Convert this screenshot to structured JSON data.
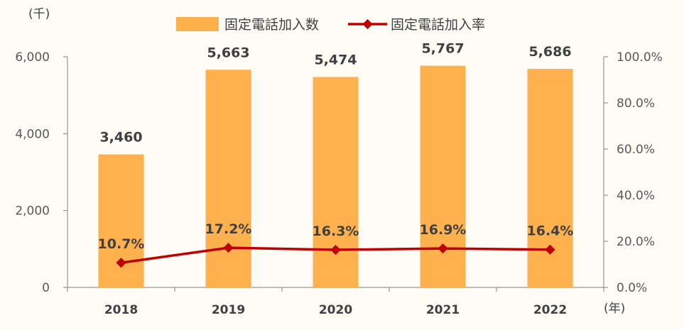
{
  "chart_data": {
    "type": "bar",
    "y_unit": "(千)",
    "x_unit": "(年)",
    "categories": [
      "2018",
      "2019",
      "2020",
      "2021",
      "2022"
    ],
    "series": [
      {
        "name": "固定電話加入数",
        "type": "bar",
        "axis": "left",
        "values": [
          3460,
          5663,
          5474,
          5767,
          5686
        ],
        "labels": [
          "3,460",
          "5,663",
          "5,474",
          "5,767",
          "5,686"
        ]
      },
      {
        "name": "固定電話加入率",
        "type": "line",
        "axis": "right",
        "values": [
          10.7,
          17.2,
          16.3,
          16.9,
          16.4
        ],
        "labels": [
          "10.7%",
          "17.2%",
          "16.3%",
          "16.9%",
          "16.4%"
        ]
      }
    ],
    "left_axis": {
      "min": 0,
      "max": 6000,
      "ticks": [
        "0",
        "2,000",
        "4,000",
        "6,000"
      ]
    },
    "right_axis": {
      "min": 0,
      "max": 100,
      "ticks": [
        "0.0%",
        "20.0%",
        "40.0%",
        "60.0%",
        "80.0%",
        "100.0%"
      ]
    },
    "grid": false,
    "legend_position": "top",
    "colors": {
      "bar": "#ffb14e",
      "line": "#c00000",
      "axis": "#808080"
    }
  }
}
